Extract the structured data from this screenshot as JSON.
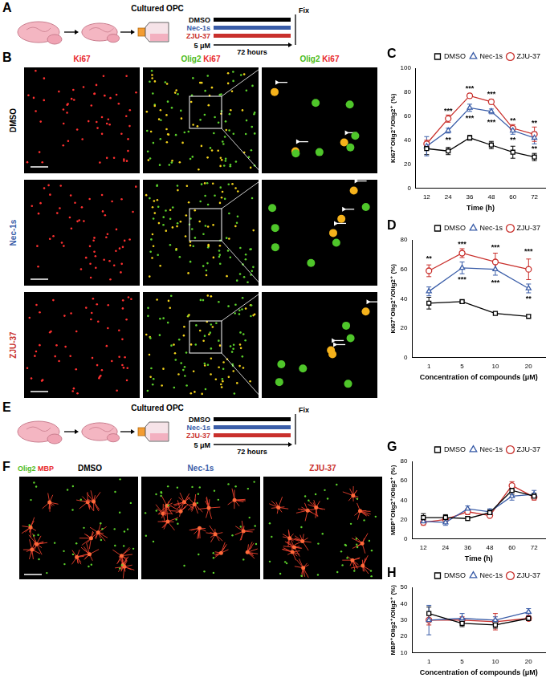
{
  "schematics": [
    {
      "panel_label": "A",
      "title": "Cultured OPC",
      "conditions": [
        {
          "name": "DMSO",
          "color": "#000000"
        },
        {
          "name": "Nec-1s",
          "color": "#3a5da8"
        },
        {
          "name": "ZJU-37",
          "color": "#c9302c"
        }
      ],
      "dose": "5 μM",
      "duration": "72 hours",
      "end": "Fix"
    },
    {
      "panel_label": "E",
      "title": "Cultured OPC",
      "conditions": [
        {
          "name": "DMSO",
          "color": "#000000"
        },
        {
          "name": "Nec-1s",
          "color": "#3a5da8"
        },
        {
          "name": "ZJU-37",
          "color": "#c9302c"
        }
      ],
      "dose": "5 μM",
      "duration": "72 hours",
      "end": "Fix"
    }
  ],
  "images": [
    {
      "panel_label": "B",
      "column_headers": [
        [
          {
            "text": "Ki67",
            "color": "#e8262a"
          }
        ],
        [
          {
            "text": "Olig2",
            "color": "#4cbb17"
          },
          {
            "text": "Ki67",
            "color": "#e8262a"
          }
        ],
        [
          {
            "text": "Olig2",
            "color": "#4cbb17"
          },
          {
            "text": "Ki67",
            "color": "#e8262a"
          }
        ]
      ],
      "row_labels": [
        {
          "text": "DMSO",
          "color": "#000000"
        },
        {
          "text": "Nec-1s",
          "color": "#3a5da8"
        },
        {
          "text": "ZJU-37",
          "color": "#c9302c"
        }
      ]
    },
    {
      "panel_label": "F",
      "channel_label": [
        {
          "text": "Olig2",
          "color": "#4cbb17"
        },
        {
          "text": "MBP",
          "color": "#e8262a"
        }
      ],
      "column_headers": [
        {
          "text": "DMSO",
          "color": "#000000"
        },
        {
          "text": "Nec-1s",
          "color": "#3a5da8"
        },
        {
          "text": "ZJU-37",
          "color": "#c9302c"
        }
      ]
    }
  ],
  "chart_data": [
    {
      "type": "line",
      "panel_label": "C",
      "x_label": "Time (h)",
      "y_label": "Ki67⁺Olig2⁺/Olig2⁺ (%)",
      "categories": [
        12,
        24,
        36,
        48,
        60,
        72
      ],
      "series": [
        {
          "name": "DMSO",
          "color": "#000000",
          "marker": "square",
          "values": [
            33,
            31,
            42,
            36,
            30,
            26
          ],
          "errors": [
            5,
            3,
            2,
            3,
            5,
            3
          ]
        },
        {
          "name": "Nec-1s",
          "color": "#3a5da8",
          "marker": "triangle",
          "values": [
            35,
            48,
            67,
            64,
            48,
            42
          ],
          "errors": [
            8,
            2,
            3,
            2,
            3,
            5
          ]
        },
        {
          "name": "ZJU-37",
          "color": "#c9302c",
          "marker": "circle",
          "values": [
            37,
            58,
            77,
            72,
            50,
            45
          ],
          "errors": [
            3,
            3,
            2,
            2,
            3,
            6
          ]
        }
      ],
      "ylim": [
        0,
        100
      ],
      "yticks": [
        0,
        20,
        40,
        60,
        80,
        100
      ],
      "grid": false,
      "legend": "upper right",
      "annotations": [
        {
          "x": 24,
          "y": 64,
          "text": "***"
        },
        {
          "x": 24,
          "y": 40,
          "text": "**"
        },
        {
          "x": 36,
          "y": 83,
          "text": "***"
        },
        {
          "x": 36,
          "y": 58,
          "text": "***"
        },
        {
          "x": 48,
          "y": 78,
          "text": "***"
        },
        {
          "x": 48,
          "y": 55,
          "text": "***"
        },
        {
          "x": 60,
          "y": 56,
          "text": "**"
        },
        {
          "x": 60,
          "y": 40,
          "text": "**"
        },
        {
          "x": 72,
          "y": 54,
          "text": "**"
        },
        {
          "x": 72,
          "y": 33,
          "text": "**"
        }
      ]
    },
    {
      "type": "line",
      "panel_label": "D",
      "x_label": "Concentration of compounds (μM)",
      "y_label": "Ki67⁺Olig2⁺/Olig2⁺ (%)",
      "categories": [
        1,
        5,
        10,
        20
      ],
      "series": [
        {
          "name": "DMSO",
          "color": "#000000",
          "marker": "square",
          "values": [
            37,
            38,
            30,
            28
          ],
          "errors": [
            4,
            1,
            1,
            1
          ]
        },
        {
          "name": "Nec-1s",
          "color": "#3a5da8",
          "marker": "triangle",
          "values": [
            45,
            61,
            60,
            47
          ],
          "errors": [
            3,
            4,
            4,
            3
          ]
        },
        {
          "name": "ZJU-37",
          "color": "#c9302c",
          "marker": "circle",
          "values": [
            59,
            71,
            65,
            60
          ],
          "errors": [
            4,
            3,
            6,
            7
          ]
        }
      ],
      "ylim": [
        0,
        80
      ],
      "yticks": [
        0,
        20,
        40,
        60,
        80
      ],
      "grid": false,
      "legend": "upper right",
      "annotations": [
        {
          "x": 1,
          "y": 67,
          "text": "**"
        },
        {
          "x": 5,
          "y": 77,
          "text": "***"
        },
        {
          "x": 5,
          "y": 53,
          "text": "***"
        },
        {
          "x": 10,
          "y": 75,
          "text": "***"
        },
        {
          "x": 10,
          "y": 51,
          "text": "***"
        },
        {
          "x": 20,
          "y": 72,
          "text": "***"
        },
        {
          "x": 20,
          "y": 40,
          "text": "**"
        }
      ]
    },
    {
      "type": "line",
      "panel_label": "G",
      "x_label": "Time (h)",
      "y_label": "MBP⁺Olig2⁺/Olig2⁺ (%)",
      "categories": [
        12,
        24,
        36,
        48,
        60,
        72
      ],
      "series": [
        {
          "name": "DMSO",
          "color": "#000000",
          "marker": "square",
          "values": [
            22,
            22,
            21,
            27,
            50,
            44
          ],
          "errors": [
            4,
            3,
            2,
            3,
            4,
            3
          ]
        },
        {
          "name": "Nec-1s",
          "color": "#3a5da8",
          "marker": "triangle",
          "values": [
            18,
            17,
            31,
            28,
            44,
            46
          ],
          "errors": [
            3,
            3,
            3,
            3,
            4,
            4
          ]
        },
        {
          "name": "ZJU-37",
          "color": "#c9302c",
          "marker": "circle",
          "values": [
            17,
            20,
            28,
            24,
            55,
            43
          ],
          "errors": [
            3,
            3,
            3,
            2,
            4,
            3
          ]
        }
      ],
      "ylim": [
        0,
        80
      ],
      "yticks": [
        0,
        20,
        40,
        60,
        80
      ],
      "grid": false,
      "legend": "upper right"
    },
    {
      "type": "line",
      "panel_label": "H",
      "x_label": "Concentration of compounds (μM)",
      "y_label": "MBP⁺Olig2⁺/Olig2⁺ (%)",
      "categories": [
        1,
        5,
        10,
        20
      ],
      "series": [
        {
          "name": "DMSO",
          "color": "#000000",
          "marker": "square",
          "values": [
            34,
            28,
            27,
            31
          ],
          "errors": [
            4,
            2,
            2,
            1
          ]
        },
        {
          "name": "Nec-1s",
          "color": "#3a5da8",
          "marker": "triangle",
          "values": [
            30,
            31,
            30,
            35
          ],
          "errors": [
            9,
            3,
            2,
            2
          ]
        },
        {
          "name": "ZJU-37",
          "color": "#c9302c",
          "marker": "circle",
          "values": [
            30,
            30,
            29,
            31
          ],
          "errors": [
            3,
            2,
            5,
            1
          ]
        }
      ],
      "ylim": [
        10,
        50
      ],
      "yticks": [
        10,
        20,
        30,
        40,
        50
      ],
      "grid": false,
      "legend": "upper right"
    }
  ]
}
